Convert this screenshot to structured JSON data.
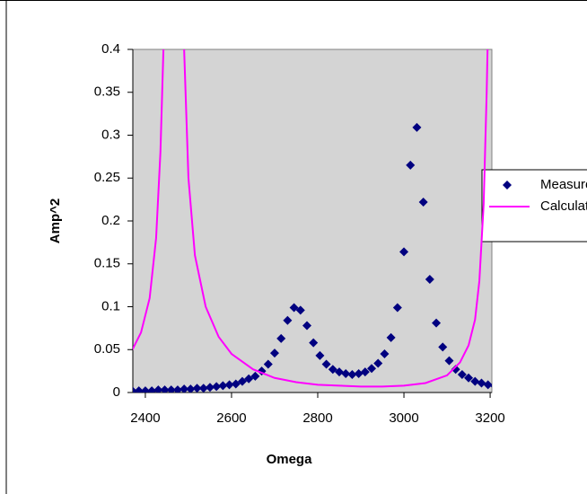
{
  "chart_data": {
    "type": "scatter-line",
    "y_label": "Amp^2",
    "x_label": "Omega",
    "xlim": [
      2371,
      3204
    ],
    "xticks": [
      2400,
      2600,
      2800,
      3000,
      3200
    ],
    "ylim": [
      0,
      0.4
    ],
    "yticks": [
      0,
      0.05,
      0.1,
      0.15,
      0.2,
      0.25,
      0.3,
      0.35,
      0.4
    ],
    "plot_background": "#d4d4d4",
    "series": [
      {
        "name": "Measured",
        "color": "#000080",
        "marker": "diamond",
        "x": [
          2370,
          2385,
          2400,
          2415,
          2430,
          2445,
          2460,
          2475,
          2490,
          2505,
          2520,
          2535,
          2550,
          2565,
          2580,
          2595,
          2610,
          2625,
          2640,
          2655,
          2670,
          2685,
          2700,
          2715,
          2730,
          2745,
          2760,
          2775,
          2790,
          2805,
          2820,
          2835,
          2850,
          2865,
          2880,
          2895,
          2910,
          2925,
          2940,
          2955,
          2970,
          2985,
          3000,
          3015,
          3030,
          3045,
          3060,
          3075,
          3090,
          3105,
          3120,
          3135,
          3150,
          3165,
          3180,
          3195,
          3210
        ],
        "values": [
          0.002,
          0.002,
          0.002,
          0.002,
          0.003,
          0.003,
          0.003,
          0.003,
          0.004,
          0.004,
          0.005,
          0.005,
          0.006,
          0.007,
          0.008,
          0.009,
          0.01,
          0.013,
          0.016,
          0.019,
          0.025,
          0.033,
          0.046,
          0.063,
          0.084,
          0.099,
          0.096,
          0.078,
          0.058,
          0.043,
          0.033,
          0.027,
          0.024,
          0.022,
          0.021,
          0.022,
          0.024,
          0.028,
          0.034,
          0.045,
          0.064,
          0.099,
          0.164,
          0.265,
          0.309,
          0.222,
          0.132,
          0.081,
          0.053,
          0.037,
          0.027,
          0.021,
          0.017,
          0.013,
          0.011,
          0.009,
          0.008
        ]
      },
      {
        "name": "Calculated",
        "color": "#ff00ff",
        "marker": "line",
        "x": [
          2370,
          2390,
          2410,
          2425,
          2435,
          2442,
          2446,
          2466,
          2486,
          2490,
          2500,
          2515,
          2540,
          2570,
          2600,
          2650,
          2700,
          2750,
          2800,
          2850,
          2900,
          2950,
          3000,
          3050,
          3100,
          3130,
          3150,
          3165,
          3175,
          3185,
          3192,
          3196
        ],
        "values": [
          0.05,
          0.07,
          0.11,
          0.18,
          0.28,
          0.4,
          0.55,
          null,
          0.55,
          0.4,
          0.25,
          0.16,
          0.1,
          0.065,
          0.045,
          0.027,
          0.017,
          0.012,
          0.009,
          0.008,
          0.007,
          0.007,
          0.008,
          0.011,
          0.02,
          0.035,
          0.055,
          0.085,
          0.13,
          0.22,
          0.35,
          0.45
        ]
      }
    ]
  }
}
